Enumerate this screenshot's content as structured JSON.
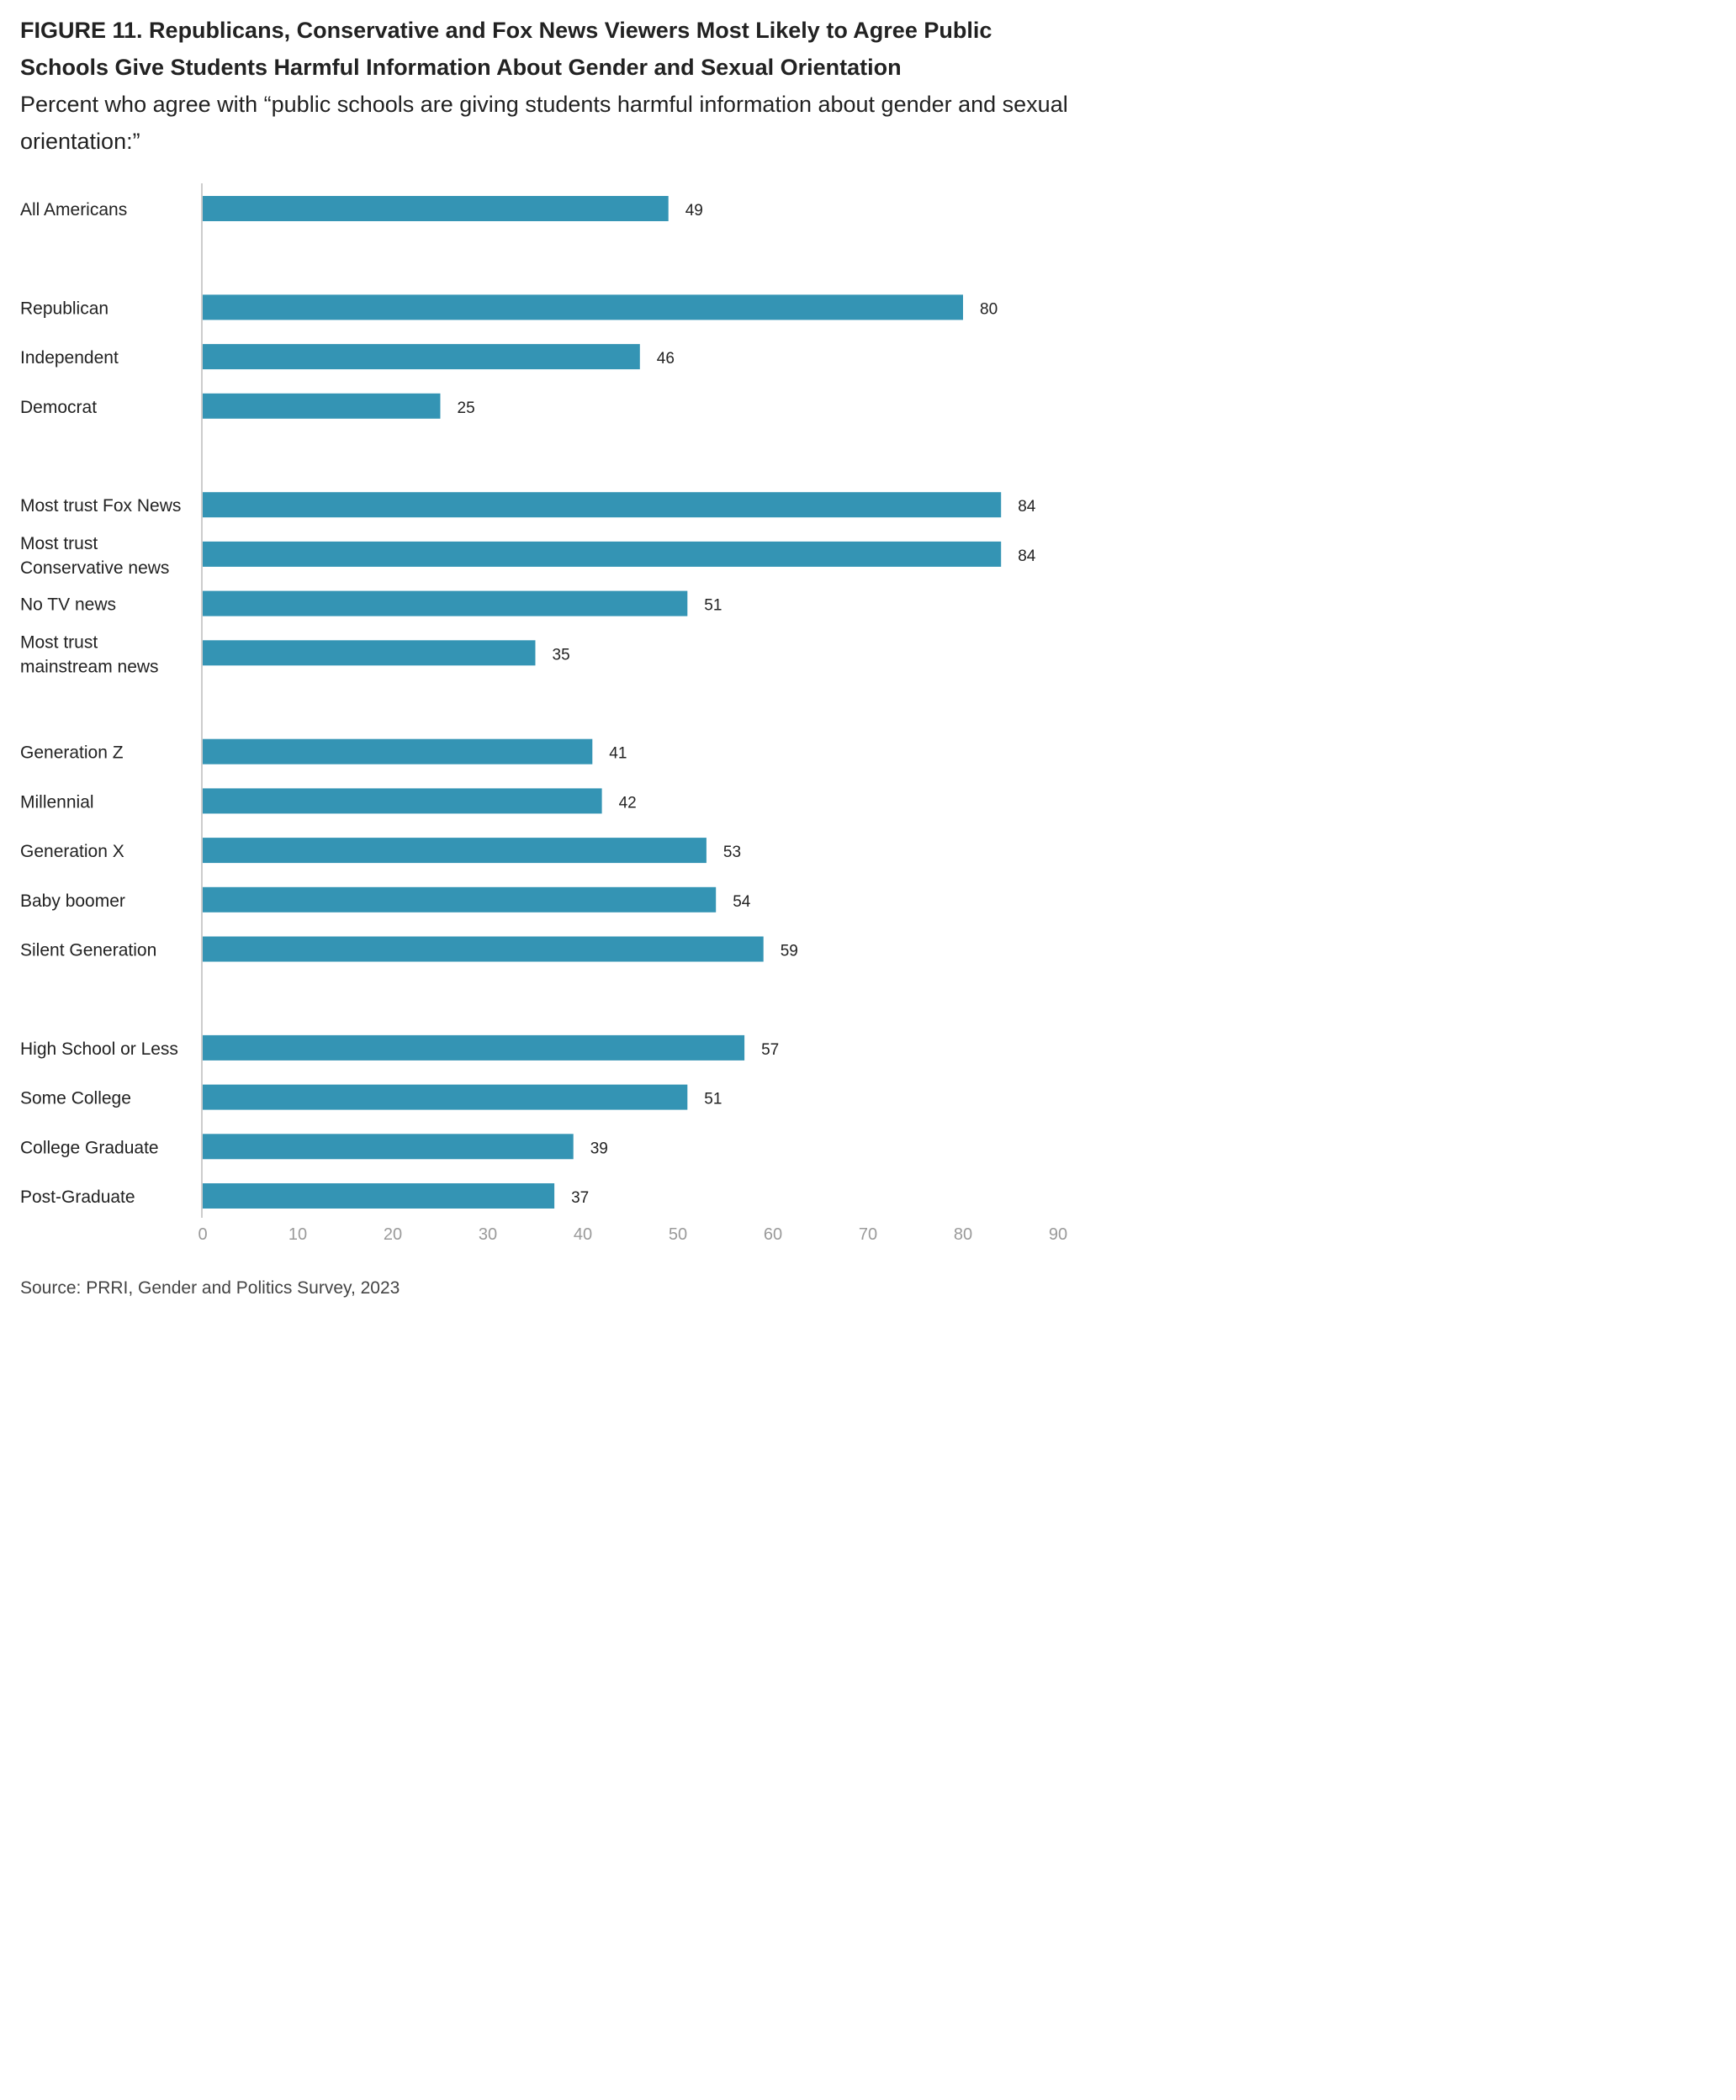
{
  "title": "FIGURE 11.  Republicans, Conservative and Fox News Viewers Most Likely to Agree Public Schools Give Students Harmful Information About Gender and Sexual Orientation",
  "subtitle": "Percent who agree with “public schools are giving students harmful information about gender and sexual orientation:”",
  "source": "Source: PRRI, Gender and Politics Survey, 2023",
  "colors": {
    "bar": "#3494b4",
    "axis": "#cccccc",
    "tick": "#9a9a9a"
  },
  "chart_data": {
    "type": "bar",
    "orientation": "horizontal",
    "title": "FIGURE 11.  Republicans, Conservative and Fox News Viewers Most Likely to Agree Public Schools Give Students Harmful Information About Gender and Sexual Orientation",
    "xlim": [
      0,
      90
    ],
    "xticks": [
      0,
      10,
      20,
      30,
      40,
      50,
      60,
      70,
      80,
      90
    ],
    "groups": [
      {
        "items": [
          {
            "label": [
              "All Americans"
            ],
            "value": 49
          }
        ]
      },
      {
        "items": [
          {
            "label": [
              "Republican"
            ],
            "value": 80
          },
          {
            "label": [
              "Independent"
            ],
            "value": 46
          },
          {
            "label": [
              "Democrat"
            ],
            "value": 25
          }
        ]
      },
      {
        "items": [
          {
            "label": [
              "Most trust Fox News"
            ],
            "value": 84
          },
          {
            "label": [
              "Most trust",
              "Conservative news"
            ],
            "value": 84
          },
          {
            "label": [
              "No TV news"
            ],
            "value": 51
          },
          {
            "label": [
              "Most trust",
              "mainstream news"
            ],
            "value": 35
          }
        ]
      },
      {
        "items": [
          {
            "label": [
              "Generation Z"
            ],
            "value": 41
          },
          {
            "label": [
              "Millennial"
            ],
            "value": 42
          },
          {
            "label": [
              "Generation X"
            ],
            "value": 53
          },
          {
            "label": [
              "Baby boomer"
            ],
            "value": 54
          },
          {
            "label": [
              "Silent Generation"
            ],
            "value": 59
          }
        ]
      },
      {
        "items": [
          {
            "label": [
              "High School or Less"
            ],
            "value": 57
          },
          {
            "label": [
              "Some College"
            ],
            "value": 51
          },
          {
            "label": [
              "College Graduate"
            ],
            "value": 39
          },
          {
            "label": [
              "Post-Graduate"
            ],
            "value": 37
          }
        ]
      }
    ]
  }
}
